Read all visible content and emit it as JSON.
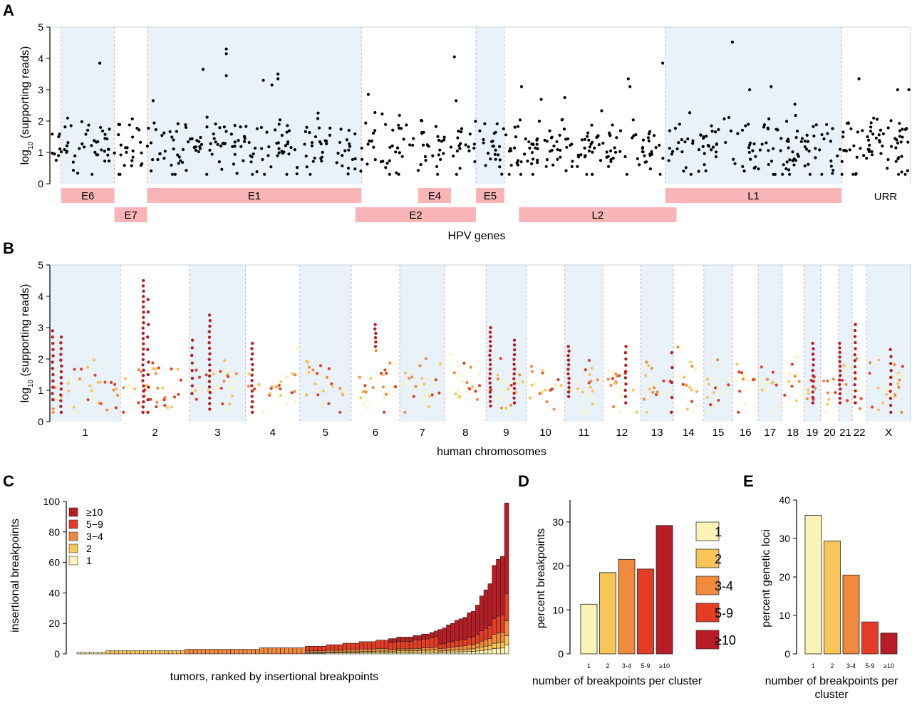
{
  "colors": {
    "shade": "#e9f2f9",
    "gene_box": "#f8b5b8",
    "dot_black": "#000000",
    "cat1": "#fcf3b6",
    "cat2": "#f8c559",
    "cat3_4": "#f08a3e",
    "cat5_9": "#e33d26",
    "cat10": "#b81d25"
  },
  "panels": {
    "A": {
      "letter": "A"
    },
    "B": {
      "letter": "B"
    },
    "C": {
      "letter": "C"
    },
    "D": {
      "letter": "D"
    },
    "E": {
      "letter": "E"
    }
  },
  "chart_data": [
    {
      "id": "A",
      "type": "scatter",
      "ylabel_main": "log",
      "ylabel_sub": "10",
      "ylabel_rest": " (supporting reads)",
      "xlabel": "HPV genes",
      "ylim": [
        0,
        5
      ],
      "yticks": [
        "0",
        "1",
        "2",
        "3",
        "4",
        "5"
      ],
      "genes": [
        {
          "name": "E6",
          "start": 0.013,
          "end": 0.075,
          "row": 0
        },
        {
          "name": "E7",
          "start": 0.075,
          "end": 0.113,
          "row": 1
        },
        {
          "name": "E1",
          "start": 0.113,
          "end": 0.362,
          "row": 0
        },
        {
          "name": "E2",
          "start": 0.355,
          "end": 0.495,
          "row": 1
        },
        {
          "name": "E4",
          "start": 0.428,
          "end": 0.466,
          "row": 0
        },
        {
          "name": "E5",
          "start": 0.495,
          "end": 0.528,
          "row": 0
        },
        {
          "name": "L2",
          "start": 0.545,
          "end": 0.728,
          "row": 1
        },
        {
          "name": "L1",
          "start": 0.715,
          "end": 0.92,
          "row": 0
        }
      ],
      "urr_label": "URR",
      "shaded_regions": [
        [
          0.013,
          0.075
        ],
        [
          0.113,
          0.362
        ],
        [
          0.495,
          0.528
        ],
        [
          0.715,
          0.92
        ]
      ],
      "dividers": [
        0.013,
        0.075,
        0.113,
        0.362,
        0.495,
        0.528,
        0.715,
        0.92
      ],
      "series": [
        {
          "color": "#000000",
          "n": 700,
          "mean": 1.15,
          "sd": 0.62,
          "outliers": [
            [
              0.058,
              3.85
            ],
            [
              0.205,
              4.3
            ],
            [
              0.205,
              4.15
            ],
            [
              0.205,
              3.45
            ],
            [
              0.178,
              3.65
            ],
            [
              0.265,
              3.5
            ],
            [
              0.265,
              3.35
            ],
            [
              0.248,
              3.3
            ],
            [
              0.258,
              3.15
            ],
            [
              0.47,
              4.05
            ],
            [
              0.472,
              2.65
            ],
            [
              0.548,
              3.1
            ],
            [
              0.672,
              3.35
            ],
            [
              0.674,
              3.1
            ],
            [
              0.712,
              3.85
            ],
            [
              0.793,
              4.52
            ],
            [
              0.813,
              3.0
            ],
            [
              0.838,
              3.1
            ],
            [
              0.94,
              3.35
            ],
            [
              0.985,
              3.0
            ],
            [
              0.998,
              3.0
            ],
            [
              0.37,
              2.85
            ],
            [
              0.12,
              2.65
            ]
          ]
        }
      ]
    },
    {
      "id": "B",
      "type": "scatter",
      "ylabel_main": "log",
      "ylabel_sub": "10",
      "ylabel_rest": " (supporting reads)",
      "xlabel": "human chromosomes",
      "ylim": [
        0,
        5
      ],
      "yticks": [
        "0",
        "1",
        "2",
        "3",
        "4",
        "5"
      ],
      "chromosomes": [
        {
          "name": "1",
          "len": 249
        },
        {
          "name": "2",
          "len": 243
        },
        {
          "name": "3",
          "len": 198
        },
        {
          "name": "4",
          "len": 191
        },
        {
          "name": "5",
          "len": 181
        },
        {
          "name": "6",
          "len": 171
        },
        {
          "name": "7",
          "len": 159
        },
        {
          "name": "8",
          "len": 146
        },
        {
          "name": "9",
          "len": 141
        },
        {
          "name": "10",
          "len": 136
        },
        {
          "name": "11",
          "len": 135
        },
        {
          "name": "12",
          "len": 133
        },
        {
          "name": "13",
          "len": 115
        },
        {
          "name": "14",
          "len": 107
        },
        {
          "name": "15",
          "len": 102
        },
        {
          "name": "16",
          "len": 90
        },
        {
          "name": "17",
          "len": 83
        },
        {
          "name": "18",
          "len": 78
        },
        {
          "name": "19",
          "len": 59
        },
        {
          "name": "20",
          "len": 63
        },
        {
          "name": "21",
          "len": 48
        },
        {
          "name": "22",
          "len": 51
        },
        {
          "name": "X",
          "len": 155
        }
      ],
      "clusters": [
        [
          0.04,
          "cat10",
          12,
          0.7,
          2.9
        ],
        [
          0.16,
          "cat10",
          14,
          0.3,
          2.7
        ],
        [
          0.33,
          "cat10",
          26,
          0.3,
          4.5
        ],
        [
          0.4,
          "cat10",
          10,
          0.3,
          3.9
        ],
        [
          0.05,
          "cat10",
          8,
          0.9,
          2.6
        ],
        [
          0.36,
          "cat10",
          18,
          0.4,
          3.4
        ],
        [
          0.12,
          "cat10",
          14,
          0.3,
          2.5
        ],
        [
          0.5,
          "cat10",
          6,
          2.4,
          3.1
        ],
        [
          0.1,
          "cat10",
          18,
          0.5,
          3.0
        ],
        [
          0.7,
          "cat10",
          14,
          0.6,
          2.6
        ],
        [
          0.1,
          "cat10",
          12,
          0.8,
          2.4
        ],
        [
          0.6,
          "cat10",
          10,
          0.6,
          2.4
        ],
        [
          0.55,
          "cat10",
          12,
          0.6,
          2.5
        ],
        [
          0.95,
          "cat10",
          5,
          0.3,
          2.2
        ],
        [
          0.1,
          "cat10",
          14,
          0.6,
          2.5
        ],
        [
          0.2,
          "cat10",
          14,
          0.6,
          3.1
        ],
        [
          0.55,
          "cat10",
          10,
          0.3,
          2.3
        ]
      ],
      "cluster_chroms": [
        "1",
        "1",
        "2",
        "2",
        "3",
        "3",
        "4",
        "6",
        "9",
        "9",
        "11",
        "12",
        "19",
        "13",
        "21",
        "22",
        "X"
      ],
      "scatter_seed": 7
    },
    {
      "id": "C",
      "type": "bar",
      "stacked": true,
      "ylabel": "insertional breakpoints",
      "xlabel": "tumors, ranked by insertional breakpoints",
      "ylim": [
        0,
        100
      ],
      "yticks": [
        "0",
        "20",
        "40",
        "60",
        "80",
        "100"
      ],
      "legend": [
        {
          "label": "≥10",
          "color_key": "cat10"
        },
        {
          "label": "5−9",
          "color_key": "cat5_9"
        },
        {
          "label": "3−4",
          "color_key": "cat3_4"
        },
        {
          "label": "2",
          "color_key": "cat2"
        },
        {
          "label": "1",
          "color_key": "cat1"
        }
      ],
      "totals": [
        1,
        1,
        1,
        1,
        1,
        1,
        1,
        2,
        2,
        2,
        2,
        2,
        2,
        2,
        2,
        2,
        2,
        2,
        2,
        2,
        2,
        2,
        2,
        2,
        2,
        2,
        3,
        3,
        3,
        3,
        3,
        3,
        3,
        3,
        3,
        3,
        3,
        3,
        3,
        3,
        3,
        3,
        3,
        3,
        4,
        4,
        4,
        4,
        4,
        4,
        4,
        4,
        4,
        4,
        4,
        5,
        5,
        5,
        5,
        5,
        6,
        6,
        6,
        6,
        7,
        7,
        7,
        7,
        8,
        8,
        8,
        8,
        9,
        9,
        9,
        10,
        10,
        11,
        11,
        11,
        11,
        12,
        12,
        13,
        13,
        14,
        15,
        16,
        17,
        19,
        20,
        22,
        23,
        24,
        27,
        28,
        32,
        38,
        42,
        46,
        58,
        62,
        64,
        99
      ]
    },
    {
      "id": "D",
      "type": "bar",
      "ylabel": "percent breakpoints",
      "xlabel": "number of breakpoints per cluster",
      "ylim": [
        0,
        35
      ],
      "yticks": [
        "0",
        "10",
        "20",
        "30"
      ],
      "categories": [
        "1",
        "2",
        "3-4",
        "5-9",
        "≥10"
      ],
      "values": [
        11.3,
        18.5,
        21.5,
        19.3,
        29.2
      ],
      "legend": [
        "1",
        "2",
        "3-4",
        "5-9",
        "≥10"
      ]
    },
    {
      "id": "E",
      "type": "bar",
      "ylabel": "percent genetic loci",
      "xlabel": "number of breakpoints per cluster",
      "ylim": [
        0,
        40
      ],
      "yticks": [
        "0",
        "10",
        "20",
        "30",
        "40"
      ],
      "categories": [
        "1",
        "2",
        "3-4",
        "5-9",
        "≥10"
      ],
      "values": [
        36,
        29.3,
        20.5,
        8.3,
        5.4
      ]
    }
  ]
}
